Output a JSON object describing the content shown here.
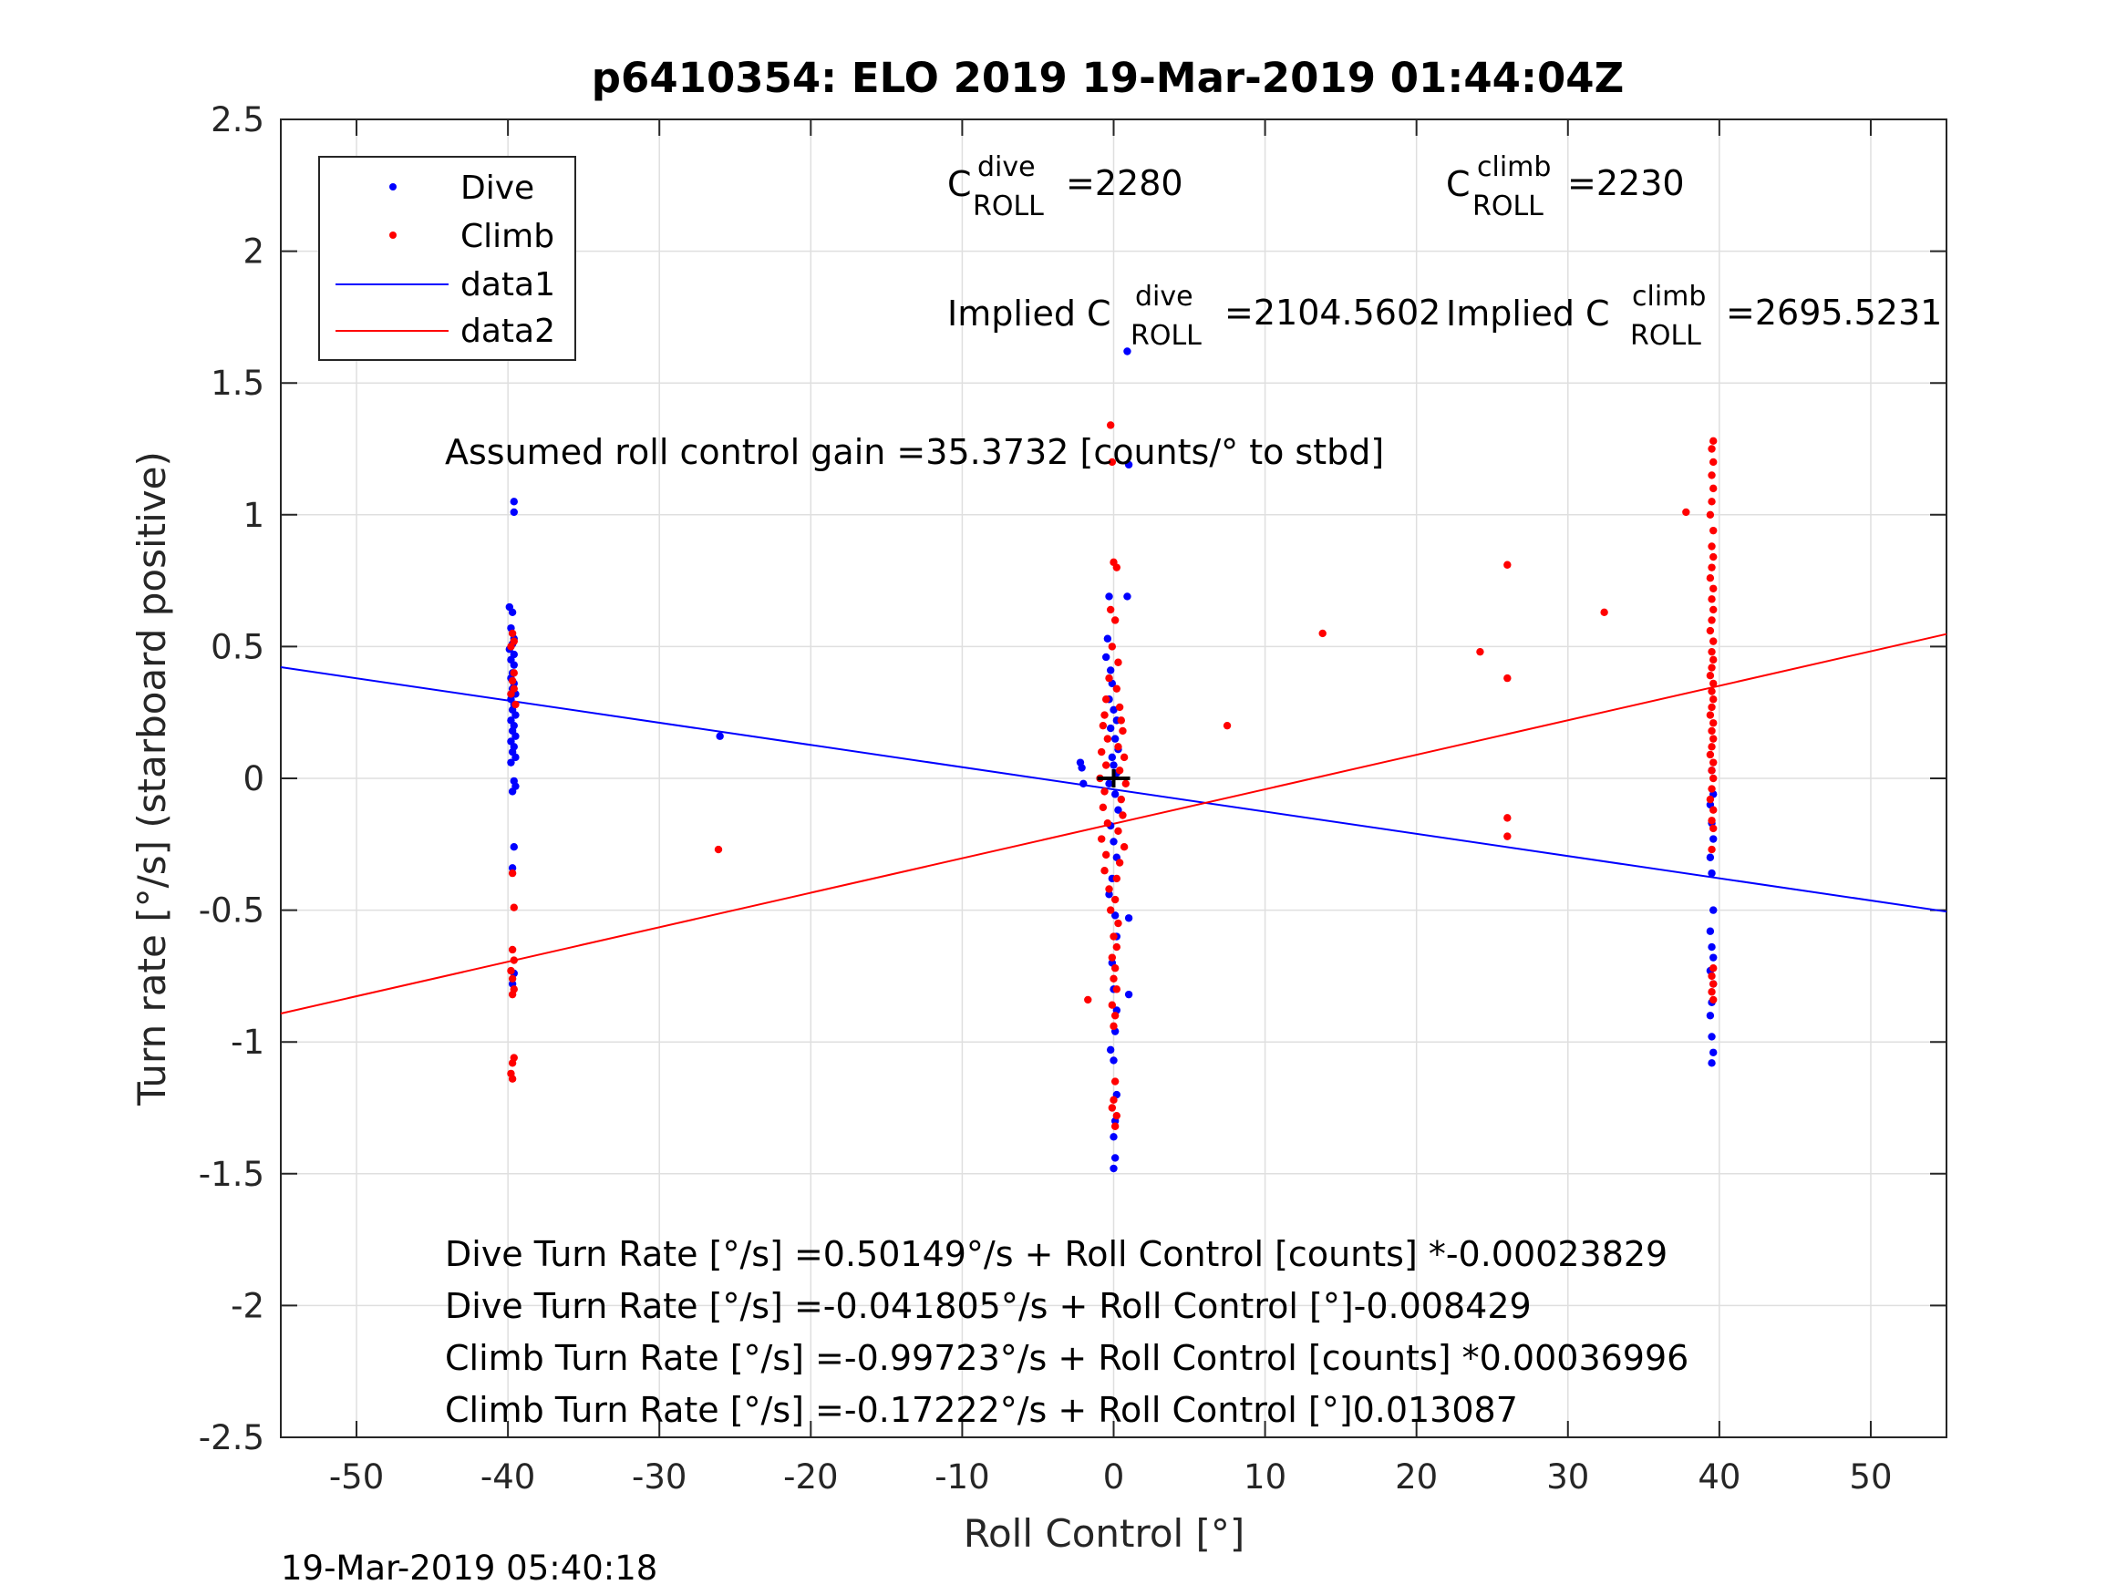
{
  "chart_data": {
    "type": "scatter",
    "title": "p6410354: ELO 2019 19-Mar-2019 01:44:04Z",
    "xlabel": "Roll Control [°]",
    "ylabel": "Turn rate [°/s] (starboard positive)",
    "xlim": [
      -55,
      55
    ],
    "ylim": [
      -2.5,
      2.5
    ],
    "x_ticks": [
      "-50",
      "-40",
      "-30",
      "-20",
      "-10",
      "0",
      "10",
      "20",
      "30",
      "40",
      "50"
    ],
    "y_ticks": [
      "2.5",
      "2",
      "1.5",
      "1",
      "0.5",
      "0",
      "-0.5",
      "-1",
      "-1.5",
      "-2",
      "-2.5"
    ],
    "grid": true,
    "legend_position": "top-left",
    "colors": {
      "dive": "#0000ff",
      "climb": "#ff0000",
      "marker": "#000000"
    },
    "legend": [
      "Dive",
      "Climb",
      "data1",
      "data2"
    ],
    "series": [
      {
        "name": "Dive",
        "kind": "points",
        "color": "#0000ff",
        "points": [
          [
            -39.6,
            1.05
          ],
          [
            -39.6,
            1.01
          ],
          [
            -39.9,
            0.65
          ],
          [
            -39.7,
            0.63
          ],
          [
            -39.8,
            0.57
          ],
          [
            -39.6,
            0.53
          ],
          [
            -39.7,
            0.51
          ],
          [
            -39.9,
            0.49
          ],
          [
            -39.6,
            0.47
          ],
          [
            -39.8,
            0.45
          ],
          [
            -39.6,
            0.43
          ],
          [
            -39.7,
            0.4
          ],
          [
            -39.8,
            0.38
          ],
          [
            -39.6,
            0.36
          ],
          [
            -39.7,
            0.34
          ],
          [
            -39.5,
            0.32
          ],
          [
            -39.8,
            0.3
          ],
          [
            -39.6,
            0.28
          ],
          [
            -39.7,
            0.26
          ],
          [
            -39.5,
            0.24
          ],
          [
            -39.8,
            0.22
          ],
          [
            -39.6,
            0.2
          ],
          [
            -39.7,
            0.18
          ],
          [
            -39.5,
            0.16
          ],
          [
            -39.8,
            0.14
          ],
          [
            -39.6,
            0.12
          ],
          [
            -39.7,
            0.1
          ],
          [
            -39.5,
            0.08
          ],
          [
            -39.8,
            0.06
          ],
          [
            -39.6,
            -0.01
          ],
          [
            -39.5,
            -0.03
          ],
          [
            -39.7,
            -0.05
          ],
          [
            -39.6,
            -0.26
          ],
          [
            -39.7,
            -0.34
          ],
          [
            -39.6,
            -0.74
          ],
          [
            -39.7,
            -0.78
          ],
          [
            -26.0,
            0.16
          ],
          [
            -2.2,
            0.06
          ],
          [
            -2.1,
            0.04
          ],
          [
            -2.0,
            -0.02
          ],
          [
            -0.3,
            0.69
          ],
          [
            -0.4,
            0.53
          ],
          [
            -0.5,
            0.46
          ],
          [
            -0.2,
            0.41
          ],
          [
            -0.1,
            0.36
          ],
          [
            -0.3,
            0.3
          ],
          [
            0.0,
            0.26
          ],
          [
            0.2,
            0.22
          ],
          [
            -0.2,
            0.19
          ],
          [
            0.1,
            0.15
          ],
          [
            0.3,
            0.11
          ],
          [
            -0.1,
            0.08
          ],
          [
            0.0,
            0.05
          ],
          [
            0.2,
            0.02
          ],
          [
            -0.3,
            -0.02
          ],
          [
            0.1,
            -0.06
          ],
          [
            0.3,
            -0.12
          ],
          [
            -0.2,
            -0.18
          ],
          [
            0.0,
            -0.24
          ],
          [
            0.2,
            -0.3
          ],
          [
            -0.1,
            -0.38
          ],
          [
            -0.3,
            -0.44
          ],
          [
            0.1,
            -0.52
          ],
          [
            0.2,
            -0.6
          ],
          [
            -0.1,
            -0.7
          ],
          [
            0.0,
            -0.8
          ],
          [
            0.2,
            -0.88
          ],
          [
            0.1,
            -0.96
          ],
          [
            -0.2,
            -1.03
          ],
          [
            0.0,
            -1.07
          ],
          [
            0.2,
            -1.2
          ],
          [
            0.1,
            -1.3
          ],
          [
            0.0,
            -1.36
          ],
          [
            0.1,
            -1.44
          ],
          [
            0.0,
            -1.48
          ],
          [
            0.9,
            1.62
          ],
          [
            1.0,
            1.19
          ],
          [
            0.9,
            0.69
          ],
          [
            1.0,
            -0.53
          ],
          [
            1.0,
            -0.82
          ],
          [
            39.5,
            0.03
          ],
          [
            39.6,
            -0.06
          ],
          [
            39.4,
            -0.1
          ],
          [
            39.5,
            -0.17
          ],
          [
            39.6,
            -0.23
          ],
          [
            39.4,
            -0.3
          ],
          [
            39.5,
            -0.36
          ],
          [
            39.6,
            -0.5
          ],
          [
            39.4,
            -0.58
          ],
          [
            39.5,
            -0.64
          ],
          [
            39.6,
            -0.68
          ],
          [
            39.4,
            -0.73
          ],
          [
            39.6,
            -0.78
          ],
          [
            39.5,
            -0.85
          ],
          [
            39.4,
            -0.9
          ],
          [
            39.5,
            -0.98
          ],
          [
            39.6,
            -1.04
          ],
          [
            39.5,
            -1.08
          ]
        ]
      },
      {
        "name": "Climb",
        "kind": "points",
        "color": "#ff0000",
        "points": [
          [
            -39.7,
            0.55
          ],
          [
            -39.6,
            0.52
          ],
          [
            -39.8,
            0.5
          ],
          [
            -39.6,
            0.4
          ],
          [
            -39.7,
            0.37
          ],
          [
            -39.6,
            0.34
          ],
          [
            -39.8,
            0.32
          ],
          [
            -39.5,
            0.28
          ],
          [
            -39.7,
            -0.36
          ],
          [
            -39.6,
            -0.49
          ],
          [
            -39.7,
            -0.65
          ],
          [
            -39.6,
            -0.69
          ],
          [
            -39.8,
            -0.73
          ],
          [
            -39.7,
            -0.76
          ],
          [
            -39.6,
            -0.8
          ],
          [
            -39.7,
            -0.82
          ],
          [
            -39.6,
            -1.06
          ],
          [
            -39.7,
            -1.08
          ],
          [
            -39.8,
            -1.12
          ],
          [
            -39.7,
            -1.14
          ],
          [
            -26.1,
            -0.27
          ],
          [
            -1.7,
            -0.84
          ],
          [
            -0.2,
            1.34
          ],
          [
            -0.1,
            1.2
          ],
          [
            0.0,
            0.82
          ],
          [
            0.2,
            0.8
          ],
          [
            -0.2,
            0.64
          ],
          [
            0.1,
            0.6
          ],
          [
            -0.1,
            0.5
          ],
          [
            0.3,
            0.44
          ],
          [
            -0.3,
            0.38
          ],
          [
            0.2,
            0.34
          ],
          [
            -0.5,
            0.3
          ],
          [
            0.4,
            0.27
          ],
          [
            -0.6,
            0.24
          ],
          [
            0.5,
            0.22
          ],
          [
            -0.7,
            0.2
          ],
          [
            0.6,
            0.18
          ],
          [
            -0.4,
            0.15
          ],
          [
            0.3,
            0.12
          ],
          [
            -0.8,
            0.1
          ],
          [
            0.7,
            0.08
          ],
          [
            -0.5,
            0.05
          ],
          [
            0.4,
            0.03
          ],
          [
            -0.9,
            0.0
          ],
          [
            0.8,
            -0.02
          ],
          [
            -0.6,
            -0.05
          ],
          [
            0.5,
            -0.08
          ],
          [
            -0.7,
            -0.11
          ],
          [
            0.6,
            -0.14
          ],
          [
            -0.4,
            -0.17
          ],
          [
            0.3,
            -0.2
          ],
          [
            -0.8,
            -0.23
          ],
          [
            0.7,
            -0.26
          ],
          [
            -0.5,
            -0.29
          ],
          [
            0.4,
            -0.32
          ],
          [
            -0.6,
            -0.35
          ],
          [
            0.2,
            -0.38
          ],
          [
            -0.3,
            -0.42
          ],
          [
            0.1,
            -0.46
          ],
          [
            -0.2,
            -0.5
          ],
          [
            0.3,
            -0.55
          ],
          [
            0.0,
            -0.6
          ],
          [
            0.2,
            -0.64
          ],
          [
            -0.1,
            -0.68
          ],
          [
            0.1,
            -0.72
          ],
          [
            0.0,
            -0.76
          ],
          [
            0.2,
            -0.8
          ],
          [
            -0.1,
            -0.86
          ],
          [
            0.1,
            -0.9
          ],
          [
            0.0,
            -0.94
          ],
          [
            0.1,
            -1.15
          ],
          [
            0.0,
            -1.22
          ],
          [
            0.2,
            -1.28
          ],
          [
            -0.1,
            -1.25
          ],
          [
            0.1,
            -1.32
          ],
          [
            7.5,
            0.2
          ],
          [
            13.8,
            0.55
          ],
          [
            24.2,
            0.48
          ],
          [
            26.0,
            0.81
          ],
          [
            26.0,
            0.38
          ],
          [
            26.0,
            -0.15
          ],
          [
            26.0,
            -0.22
          ],
          [
            32.4,
            0.63
          ],
          [
            37.8,
            1.01
          ],
          [
            39.6,
            1.28
          ],
          [
            39.5,
            1.25
          ],
          [
            39.6,
            1.2
          ],
          [
            39.5,
            1.15
          ],
          [
            39.6,
            1.1
          ],
          [
            39.5,
            1.05
          ],
          [
            39.4,
            1.0
          ],
          [
            39.6,
            0.94
          ],
          [
            39.5,
            0.88
          ],
          [
            39.6,
            0.84
          ],
          [
            39.5,
            0.8
          ],
          [
            39.4,
            0.76
          ],
          [
            39.6,
            0.72
          ],
          [
            39.5,
            0.68
          ],
          [
            39.6,
            0.64
          ],
          [
            39.5,
            0.6
          ],
          [
            39.4,
            0.56
          ],
          [
            39.6,
            0.52
          ],
          [
            39.5,
            0.48
          ],
          [
            39.6,
            0.45
          ],
          [
            39.5,
            0.42
          ],
          [
            39.4,
            0.39
          ],
          [
            39.6,
            0.36
          ],
          [
            39.5,
            0.33
          ],
          [
            39.6,
            0.3
          ],
          [
            39.5,
            0.27
          ],
          [
            39.4,
            0.24
          ],
          [
            39.6,
            0.21
          ],
          [
            39.5,
            0.18
          ],
          [
            39.6,
            0.15
          ],
          [
            39.5,
            0.12
          ],
          [
            39.4,
            0.09
          ],
          [
            39.6,
            0.06
          ],
          [
            39.5,
            0.03
          ],
          [
            39.6,
            0.0
          ],
          [
            39.5,
            -0.04
          ],
          [
            39.4,
            -0.08
          ],
          [
            39.6,
            -0.12
          ],
          [
            39.5,
            -0.16
          ],
          [
            39.6,
            -0.19
          ],
          [
            39.5,
            -0.27
          ],
          [
            39.6,
            -0.72
          ],
          [
            39.5,
            -0.75
          ],
          [
            39.6,
            -0.78
          ],
          [
            39.5,
            -0.81
          ],
          [
            39.6,
            -0.84
          ]
        ]
      },
      {
        "name": "data1",
        "kind": "line",
        "color": "#0000ff",
        "x": [
          -55,
          55
        ],
        "y": [
          0.4218,
          -0.5055
        ]
      },
      {
        "name": "data2",
        "kind": "line",
        "color": "#ff0000",
        "x": [
          -55,
          55
        ],
        "y": [
          -0.892,
          0.5475
        ]
      }
    ],
    "marker": {
      "shape": "plus",
      "color": "#000000",
      "x": 0,
      "y": 0
    },
    "annotations": {
      "c_roll_dive": {
        "base": "C",
        "sup": "dive",
        "sub": "ROLL",
        "text": "=2280"
      },
      "c_roll_climb": {
        "base": "C",
        "sup": "climb",
        "sub": "ROLL",
        "text": "=2230"
      },
      "implied_dive": {
        "base": "Implied C",
        "sup": "dive",
        "sub": "ROLL",
        "text": "=2104.5602"
      },
      "implied_climb": {
        "base": "Implied C",
        "sup": "climb",
        "sub": "ROLL",
        "text": "=2695.5231"
      },
      "gain": "Assumed roll control gain =35.3732 [counts/° to stbd]",
      "eq1": "Dive Turn Rate [°/s] =0.50149°/s + Roll Control [counts] *-0.00023829",
      "eq2": "Dive Turn Rate [°/s] =-0.041805°/s + Roll Control [°]-0.008429",
      "eq3": "Climb Turn Rate [°/s] =-0.99723°/s + Roll Control [counts] *0.00036996",
      "eq4": "Climb Turn Rate [°/s] =-0.17222°/s + Roll Control [°]0.013087"
    },
    "timestamp": "19-Mar-2019 05:40:18"
  }
}
